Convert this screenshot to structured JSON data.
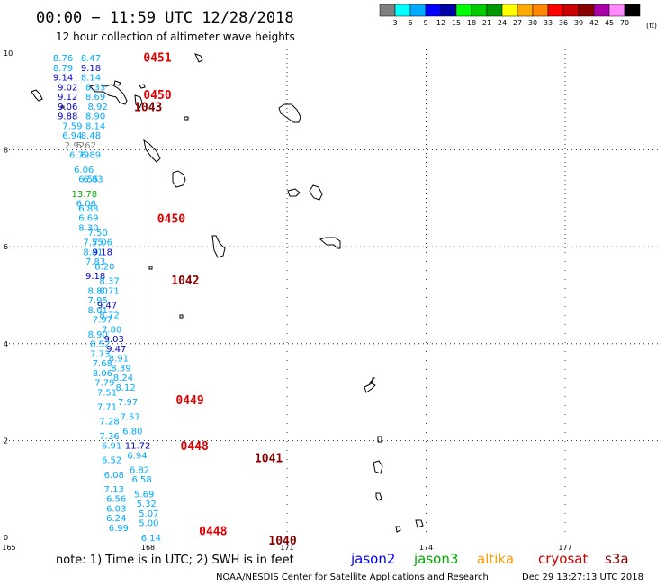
{
  "title": "00:00 − 11:59 UTC 12/28/2018",
  "subtitle": "12 hour collection of altimeter wave heights",
  "legend": {
    "unit": "(ft)",
    "ticks": [
      "3",
      "6",
      "9",
      "12",
      "15",
      "18",
      "21",
      "24",
      "27",
      "30",
      "33",
      "36",
      "39",
      "42",
      "45",
      "70"
    ],
    "colors": [
      "#808080",
      "#00ffff",
      "#00aaff",
      "#0000ff",
      "#0000aa",
      "#00ff00",
      "#00cc00",
      "#009900",
      "#ffff00",
      "#ffaa00",
      "#ff8800",
      "#ff0000",
      "#cc0000",
      "#880000",
      "#aa00aa",
      "#ff88ff",
      "#000000"
    ]
  },
  "axes": {
    "x_ticks": [
      "165",
      "168",
      "171",
      "174",
      "177"
    ],
    "y_ticks": [
      "10",
      "8",
      "6",
      "4",
      "2",
      "0"
    ]
  },
  "footer": {
    "note": "note:  1) Time is in UTC;  2) SWH is in feet",
    "satellites": [
      {
        "name": "jason2",
        "color": "#0000ff"
      },
      {
        "name": "jason3",
        "color": "#00aa00"
      },
      {
        "name": "altika",
        "color": "#ff9900"
      },
      {
        "name": "cryosat",
        "color": "#cc0000"
      },
      {
        "name": "s3a",
        "color": "#880000"
      }
    ],
    "credit": "NOAA/NESDIS Center for Satellite Applications and Research",
    "timestamp": "Dec 29 13:27:13 UTC 2018"
  },
  "map_data": {
    "lon_range": [
      165,
      179
    ],
    "lat_range": [
      0,
      10
    ],
    "pass_labels": [
      {
        "text": "0451",
        "lon": 167.9,
        "lat": 9.82,
        "color": "#dd0000"
      },
      {
        "text": "0450",
        "lon": 167.9,
        "lat": 9.05,
        "color": "#dd0000"
      },
      {
        "text": "1043",
        "lon": 167.7,
        "lat": 8.8,
        "color": "#880000"
      },
      {
        "text": "0450",
        "lon": 168.2,
        "lat": 6.5,
        "color": "#dd0000"
      },
      {
        "text": "1042",
        "lon": 168.5,
        "lat": 5.22,
        "color": "#880000"
      },
      {
        "text": "0449",
        "lon": 168.6,
        "lat": 2.75,
        "color": "#dd0000"
      },
      {
        "text": "0448",
        "lon": 168.7,
        "lat": 1.8,
        "color": "#dd0000"
      },
      {
        "text": "1041",
        "lon": 170.3,
        "lat": 1.55,
        "color": "#880000"
      },
      {
        "text": "0448",
        "lon": 169.1,
        "lat": 0.05,
        "color": "#dd0000"
      },
      {
        "text": "1040",
        "lon": 170.6,
        "lat": -0.15,
        "color": "#880000"
      }
    ],
    "swh": [
      {
        "v": "8.76",
        "lon": 165.95,
        "lat": 9.83,
        "c": "#00aaff"
      },
      {
        "v": "8.47",
        "lon": 166.55,
        "lat": 9.83,
        "c": "#00aaff"
      },
      {
        "v": "8.79",
        "lon": 165.95,
        "lat": 9.63,
        "c": "#00aaff"
      },
      {
        "v": "9.18",
        "lon": 166.55,
        "lat": 9.63,
        "c": "#0000cc"
      },
      {
        "v": "9.14",
        "lon": 165.95,
        "lat": 9.43,
        "c": "#0000cc"
      },
      {
        "v": "8.14",
        "lon": 166.55,
        "lat": 9.43,
        "c": "#00aaff"
      },
      {
        "v": "9.02",
        "lon": 166.05,
        "lat": 9.23,
        "c": "#0000cc"
      },
      {
        "v": "8.33",
        "lon": 166.65,
        "lat": 9.23,
        "c": "#00aaff"
      },
      {
        "v": "9.12",
        "lon": 166.05,
        "lat": 9.03,
        "c": "#0000cc"
      },
      {
        "v": "8.69",
        "lon": 166.65,
        "lat": 9.03,
        "c": "#00aaff"
      },
      {
        "v": "9.06",
        "lon": 166.05,
        "lat": 8.83,
        "c": "#0000cc"
      },
      {
        "v": "8.92",
        "lon": 166.7,
        "lat": 8.83,
        "c": "#00aaff"
      },
      {
        "v": "9.88",
        "lon": 166.05,
        "lat": 8.63,
        "c": "#0000cc"
      },
      {
        "v": "8.90",
        "lon": 166.65,
        "lat": 8.63,
        "c": "#00aaff"
      },
      {
        "v": "7.59",
        "lon": 166.15,
        "lat": 8.43,
        "c": "#00aaff"
      },
      {
        "v": "8.14",
        "lon": 166.65,
        "lat": 8.43,
        "c": "#00aaff"
      },
      {
        "v": "6.94",
        "lon": 166.15,
        "lat": 8.23,
        "c": "#00aaff"
      },
      {
        "v": "8.48",
        "lon": 166.55,
        "lat": 8.23,
        "c": "#00aaff"
      },
      {
        "v": "2.92",
        "lon": 166.2,
        "lat": 8.03,
        "c": "#808080"
      },
      {
        "v": "5.62",
        "lon": 166.45,
        "lat": 8.03,
        "c": "#808080"
      },
      {
        "v": "6.79",
        "lon": 166.3,
        "lat": 7.83,
        "c": "#00aaff"
      },
      {
        "v": "6.89",
        "lon": 166.55,
        "lat": 7.83,
        "c": "#00aaff"
      },
      {
        "v": "6.06",
        "lon": 166.4,
        "lat": 7.53,
        "c": "#00aaff"
      },
      {
        "v": "6.55",
        "lon": 166.5,
        "lat": 7.33,
        "c": "#00aaff"
      },
      {
        "v": "6.83",
        "lon": 166.6,
        "lat": 7.33,
        "c": "#00aaff"
      },
      {
        "v": "13.78",
        "lon": 166.35,
        "lat": 7.03,
        "c": "#00aa00"
      },
      {
        "v": "6.06",
        "lon": 166.45,
        "lat": 6.83,
        "c": "#00aaff"
      },
      {
        "v": "6.88",
        "lon": 166.5,
        "lat": 6.73,
        "c": "#00aaff"
      },
      {
        "v": "6.69",
        "lon": 166.5,
        "lat": 6.53,
        "c": "#00aaff"
      },
      {
        "v": "8.30",
        "lon": 166.5,
        "lat": 6.33,
        "c": "#00aaff"
      },
      {
        "v": "7.50",
        "lon": 166.7,
        "lat": 6.23,
        "c": "#00aaff"
      },
      {
        "v": "7.55",
        "lon": 166.6,
        "lat": 6.03,
        "c": "#00aaff"
      },
      {
        "v": "7.06",
        "lon": 166.8,
        "lat": 6.03,
        "c": "#00aaff"
      },
      {
        "v": "8.81",
        "lon": 166.6,
        "lat": 5.83,
        "c": "#00aaff"
      },
      {
        "v": "9.18",
        "lon": 166.8,
        "lat": 5.83,
        "c": "#0000cc"
      },
      {
        "v": "7.83",
        "lon": 166.65,
        "lat": 5.63,
        "c": "#00aaff"
      },
      {
        "v": "8.20",
        "lon": 166.85,
        "lat": 5.53,
        "c": "#00aaff"
      },
      {
        "v": "9.18",
        "lon": 166.65,
        "lat": 5.33,
        "c": "#0000cc"
      },
      {
        "v": "8.37",
        "lon": 166.95,
        "lat": 5.23,
        "c": "#00aaff"
      },
      {
        "v": "8.80",
        "lon": 166.7,
        "lat": 5.03,
        "c": "#00aaff"
      },
      {
        "v": "8.71",
        "lon": 166.95,
        "lat": 5.03,
        "c": "#00aaff"
      },
      {
        "v": "7.95",
        "lon": 166.7,
        "lat": 4.83,
        "c": "#00aaff"
      },
      {
        "v": "9.47",
        "lon": 166.9,
        "lat": 4.73,
        "c": "#0000cc"
      },
      {
        "v": "8.01",
        "lon": 166.7,
        "lat": 4.63,
        "c": "#00aaff"
      },
      {
        "v": "8.72",
        "lon": 166.95,
        "lat": 4.53,
        "c": "#00aaff"
      },
      {
        "v": "7.97",
        "lon": 166.8,
        "lat": 4.43,
        "c": "#00aaff"
      },
      {
        "v": "7.80",
        "lon": 167.0,
        "lat": 4.23,
        "c": "#00aaff"
      },
      {
        "v": "8.90",
        "lon": 166.7,
        "lat": 4.13,
        "c": "#00aaff"
      },
      {
        "v": "9.03",
        "lon": 167.05,
        "lat": 4.03,
        "c": "#0000cc"
      },
      {
        "v": "8.52",
        "lon": 166.75,
        "lat": 3.93,
        "c": "#00aaff"
      },
      {
        "v": "9.47",
        "lon": 167.1,
        "lat": 3.83,
        "c": "#0000cc"
      },
      {
        "v": "7.73",
        "lon": 166.75,
        "lat": 3.73,
        "c": "#00aaff"
      },
      {
        "v": "8.91",
        "lon": 167.15,
        "lat": 3.63,
        "c": "#00aaff"
      },
      {
        "v": "7.68",
        "lon": 166.8,
        "lat": 3.53,
        "c": "#00aaff"
      },
      {
        "v": "8.39",
        "lon": 167.2,
        "lat": 3.43,
        "c": "#00aaff"
      },
      {
        "v": "8.06",
        "lon": 166.8,
        "lat": 3.33,
        "c": "#00aaff"
      },
      {
        "v": "8.24",
        "lon": 167.25,
        "lat": 3.23,
        "c": "#00aaff"
      },
      {
        "v": "7.79",
        "lon": 166.85,
        "lat": 3.13,
        "c": "#00aaff"
      },
      {
        "v": "8.12",
        "lon": 167.3,
        "lat": 3.03,
        "c": "#00aaff"
      },
      {
        "v": "7.51",
        "lon": 166.9,
        "lat": 2.93,
        "c": "#00aaff"
      },
      {
        "v": "7.97",
        "lon": 167.35,
        "lat": 2.73,
        "c": "#00aaff"
      },
      {
        "v": "7.71",
        "lon": 166.9,
        "lat": 2.63,
        "c": "#00aaff"
      },
      {
        "v": "7.57",
        "lon": 167.4,
        "lat": 2.43,
        "c": "#00aaff"
      },
      {
        "v": "7.28",
        "lon": 166.95,
        "lat": 2.33,
        "c": "#00aaff"
      },
      {
        "v": "6.80",
        "lon": 167.45,
        "lat": 2.13,
        "c": "#00aaff"
      },
      {
        "v": "7.36",
        "lon": 166.95,
        "lat": 2.03,
        "c": "#00aaff"
      },
      {
        "v": "11.72",
        "lon": 167.5,
        "lat": 1.83,
        "c": "#0000cc"
      },
      {
        "v": "6.91",
        "lon": 167.0,
        "lat": 1.83,
        "c": "#00aaff"
      },
      {
        "v": "6.94",
        "lon": 167.55,
        "lat": 1.63,
        "c": "#00aaff"
      },
      {
        "v": "6.52",
        "lon": 167.0,
        "lat": 1.53,
        "c": "#00aaff"
      },
      {
        "v": "6.82",
        "lon": 167.6,
        "lat": 1.33,
        "c": "#00aaff"
      },
      {
        "v": "6.08",
        "lon": 167.05,
        "lat": 1.23,
        "c": "#00aaff"
      },
      {
        "v": "6.58",
        "lon": 167.65,
        "lat": 1.13,
        "c": "#00aaff"
      },
      {
        "v": "7.13",
        "lon": 167.05,
        "lat": 0.93,
        "c": "#00aaff"
      },
      {
        "v": "5.69",
        "lon": 167.7,
        "lat": 0.83,
        "c": "#00aaff"
      },
      {
        "v": "6.56",
        "lon": 167.1,
        "lat": 0.73,
        "c": "#00aaff"
      },
      {
        "v": "5.32",
        "lon": 167.75,
        "lat": 0.63,
        "c": "#00aaff"
      },
      {
        "v": "6.03",
        "lon": 167.1,
        "lat": 0.53,
        "c": "#00aaff"
      },
      {
        "v": "5.07",
        "lon": 167.8,
        "lat": 0.43,
        "c": "#00aaff"
      },
      {
        "v": "6.24",
        "lon": 167.1,
        "lat": 0.33,
        "c": "#00aaff"
      },
      {
        "v": "5.00",
        "lon": 167.8,
        "lat": 0.23,
        "c": "#00aaff"
      },
      {
        "v": "6.99",
        "lon": 167.15,
        "lat": 0.13,
        "c": "#00aaff"
      },
      {
        "v": "6.14",
        "lon": 167.85,
        "lat": -0.07,
        "c": "#00aaff"
      }
    ]
  }
}
